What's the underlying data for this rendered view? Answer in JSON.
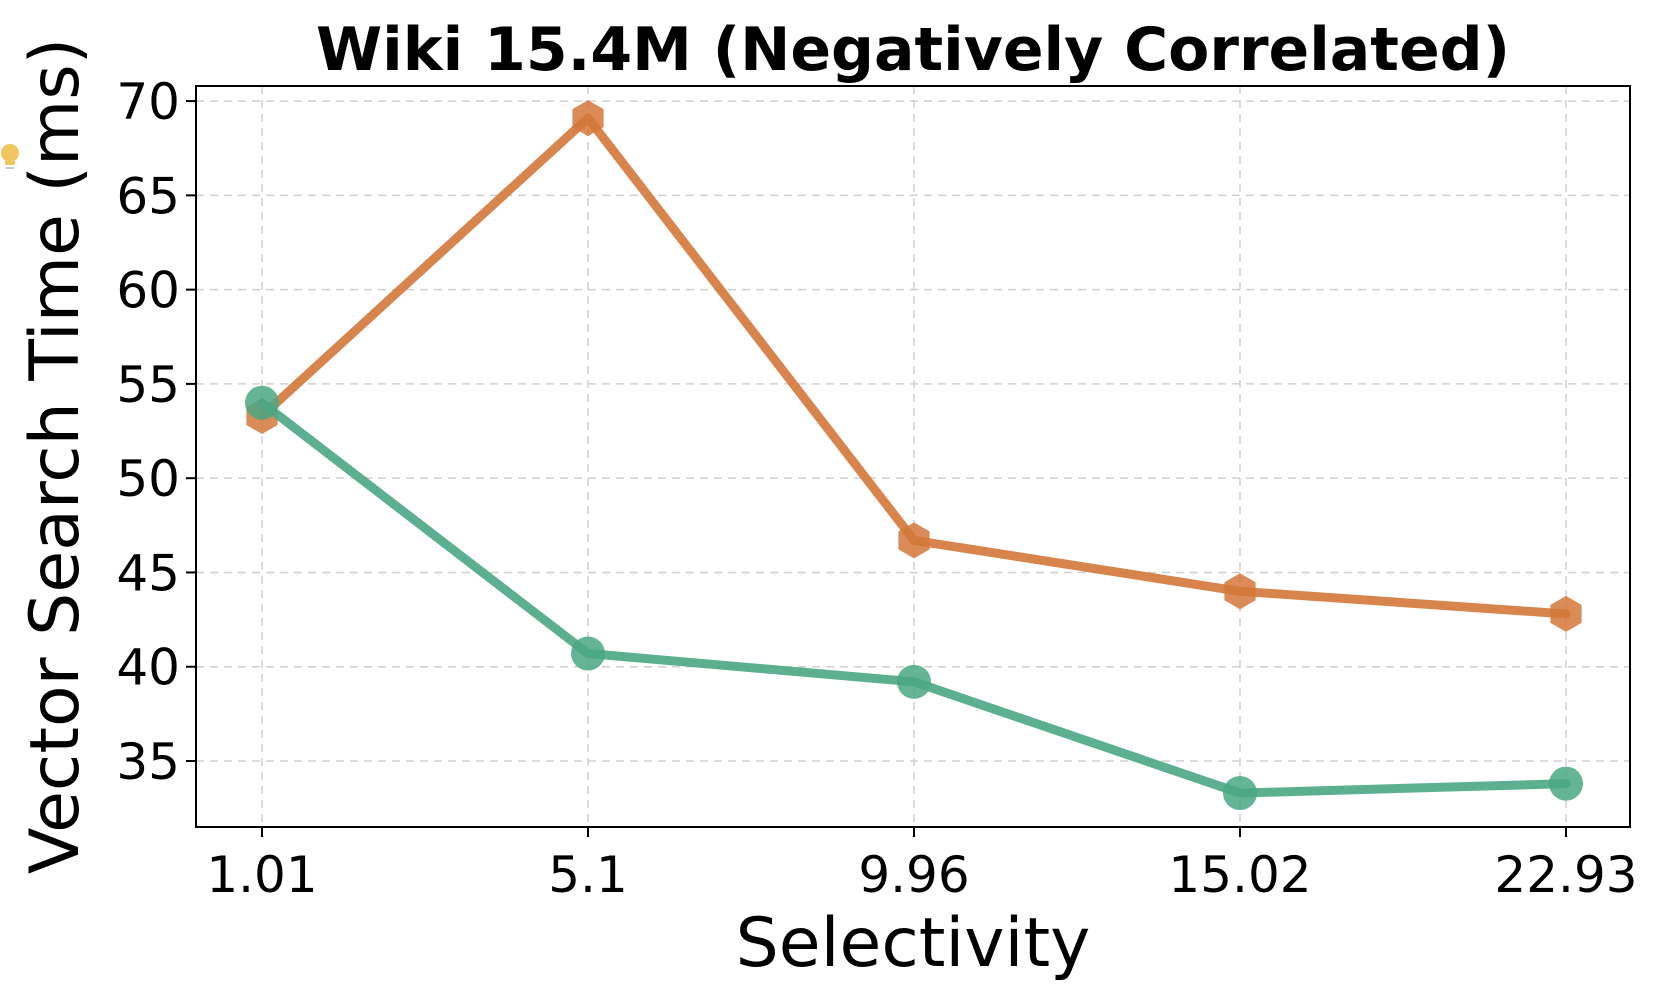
{
  "chart_data": {
    "type": "line",
    "title": "Wiki 15.4M (Negatively Correlated)",
    "xlabel": "Selectivity",
    "ylabel": "Vector Search Time (ms)",
    "categories": [
      "1.01",
      "5.1",
      "9.96",
      "15.02",
      "22.93"
    ],
    "ylim": [
      31.5,
      70.8
    ],
    "yticks": [
      35,
      40,
      45,
      50,
      55,
      60,
      65,
      70
    ],
    "grid": true,
    "series": [
      {
        "values": [
          53.3,
          69.1,
          46.7,
          44.0,
          42.8
        ],
        "color": "#d4773a",
        "marker": "hexagon"
      },
      {
        "values": [
          54.0,
          40.7,
          39.2,
          33.3,
          33.8
        ],
        "color": "#4aa784",
        "marker": "circle"
      }
    ]
  },
  "decoration": {
    "icon": "lightbulb-icon",
    "icon_color": "#f0c75e"
  }
}
